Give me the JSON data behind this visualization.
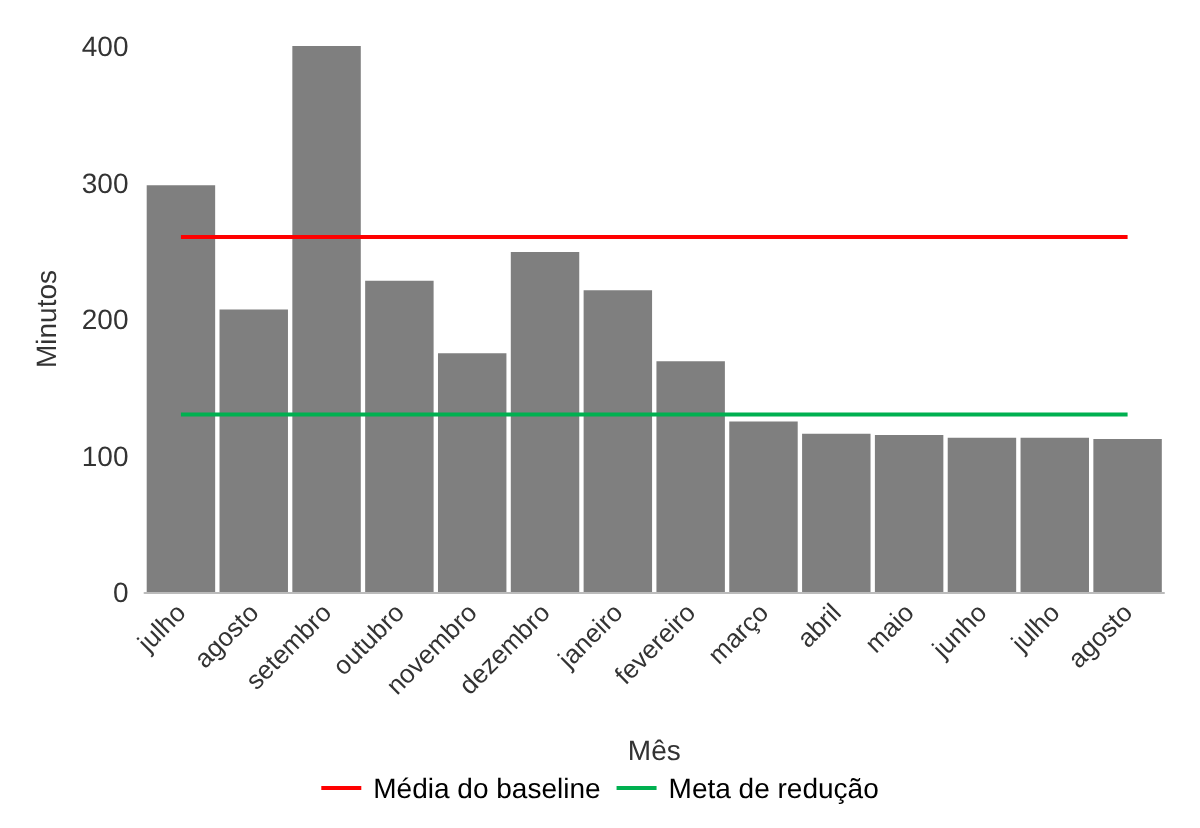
{
  "chart_data": {
    "type": "bar",
    "xlabel": "Mês",
    "ylabel": "Minutos",
    "categories": [
      "julho",
      "agosto",
      "setembro",
      "outubro",
      "novembro",
      "dezembro",
      "janeiro",
      "fevereiro",
      "março",
      "abril",
      "maio",
      "junho",
      "julho",
      "agosto"
    ],
    "series": [
      {
        "color": "#7f7f7f",
        "values": [
          298,
          207,
          400,
          228,
          175,
          249,
          221,
          169,
          125,
          116,
          115,
          113,
          113,
          112
        ]
      },
      {
        "type": "line",
        "name": "Média do baseline",
        "color": "#ff0000",
        "values": [
          260,
          260,
          260,
          260,
          260,
          260,
          260,
          260,
          260,
          260,
          260,
          260,
          260,
          260
        ]
      },
      {
        "type": "line",
        "name": "Meta de redução",
        "color": "#00b050",
        "values": [
          130,
          130,
          130,
          130,
          130,
          130,
          130,
          130,
          130,
          130,
          130,
          130,
          130,
          130
        ]
      }
    ],
    "ylim": [
      0,
      400
    ],
    "yticks": [
      0,
      100,
      200,
      300,
      400
    ],
    "grid": false,
    "legend": "bottom",
    "marker": "none"
  }
}
